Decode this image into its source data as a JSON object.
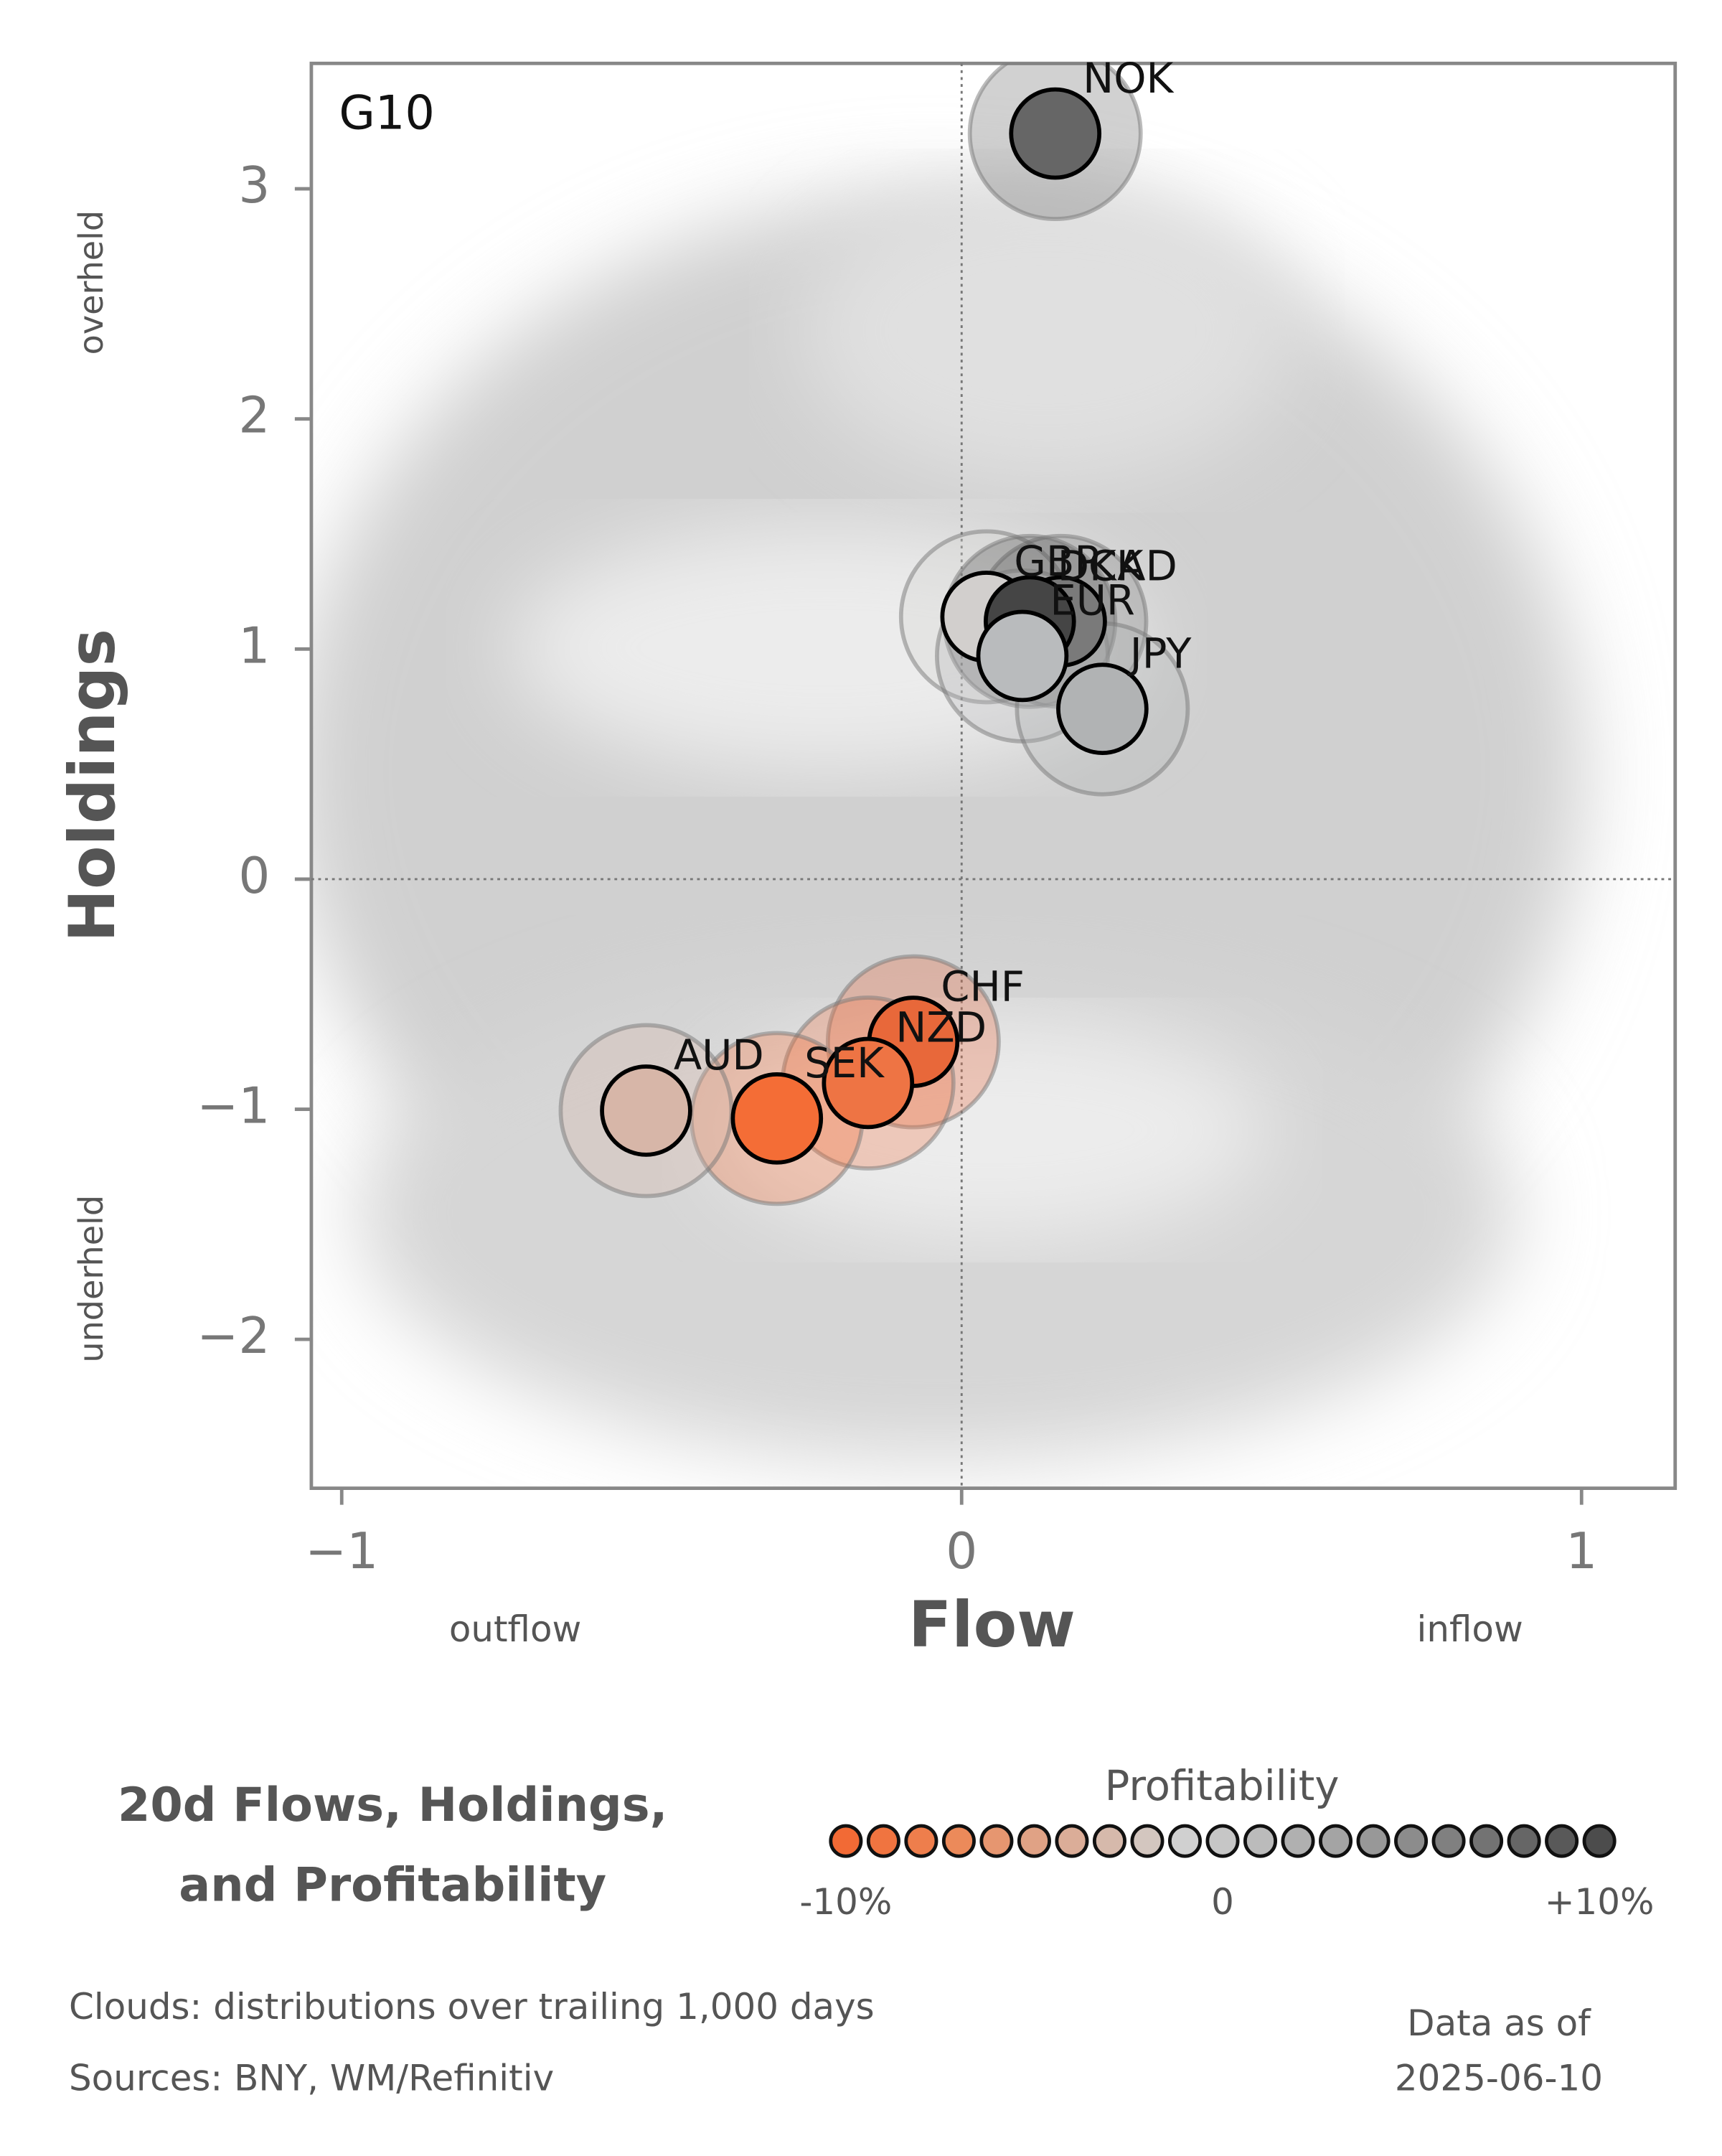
{
  "chart_data": {
    "type": "scatter",
    "panel_label": "G10",
    "xlabel": "Flow",
    "ylabel": "Holdings",
    "x_low_note": "outflow",
    "x_high_note": "inflow",
    "y_high_note": "overheld",
    "y_low_note": "underheld",
    "xlim": [
      -1.049,
      1.151
    ],
    "ylim": [
      -2.647,
      3.545
    ],
    "xticks": [
      {
        "value": -1,
        "label": "−1"
      },
      0,
      1
    ],
    "yticks": [
      {
        "value": -2,
        "label": "−2"
      },
      {
        "value": -1,
        "label": "−1"
      },
      0,
      1,
      2,
      3
    ],
    "points": [
      {
        "label": "NOK",
        "x": 0.151,
        "y": 3.24,
        "color": "#666666"
      },
      {
        "label": "GBP",
        "x": 0.04,
        "y": 1.14,
        "color": "#d2cfcd"
      },
      {
        "label": "CAD",
        "x": 0.16,
        "y": 1.12,
        "color": "#7a7a7a"
      },
      {
        "label": "DKK",
        "x": 0.11,
        "y": 1.12,
        "color": "#454545"
      },
      {
        "label": "EUR",
        "x": 0.098,
        "y": 0.97,
        "color": "#b9bbbd"
      },
      {
        "label": "JPY",
        "x": 0.227,
        "y": 0.74,
        "color": "#b1b3b4"
      },
      {
        "label": "CHF",
        "x": -0.078,
        "y": -0.707,
        "color": "#e8683a"
      },
      {
        "label": "NZD",
        "x": -0.151,
        "y": -0.886,
        "color": "#ee7444"
      },
      {
        "label": "SEK",
        "x": -0.298,
        "y": -1.04,
        "color": "#f46d36"
      },
      {
        "label": "AUD",
        "x": -0.509,
        "y": -1.006,
        "color": "#d7b6a8"
      }
    ],
    "title_lines": [
      "20d Flows, Holdings,",
      "and Profitability"
    ],
    "colorbar": {
      "title": "Profitability",
      "lim": [
        -10,
        10
      ],
      "colors": [
        "#f26a35",
        "#f07440",
        "#ee7e4c",
        "#ec8a5a",
        "#e69670",
        "#e0a285",
        "#dbad98",
        "#d6b9ab",
        "#d3c6bf",
        "#d0d0d0",
        "#c6c6c6",
        "#bbbbbb",
        "#b0b0b0",
        "#a4a4a4",
        "#989898",
        "#8c8c8c",
        "#808080",
        "#737373",
        "#666666",
        "#595959",
        "#4c4c4c"
      ],
      "ticks": [
        {
          "value": -10,
          "label": "-10%"
        },
        0,
        {
          "value": 10,
          "label": "+10%"
        }
      ]
    },
    "notes": [
      "Clouds:  distributions over trailing 1,000 days",
      "Sources:  BNY, WM/Refinitiv"
    ],
    "date_lines": [
      "Data as of",
      "2025-06-10"
    ]
  }
}
